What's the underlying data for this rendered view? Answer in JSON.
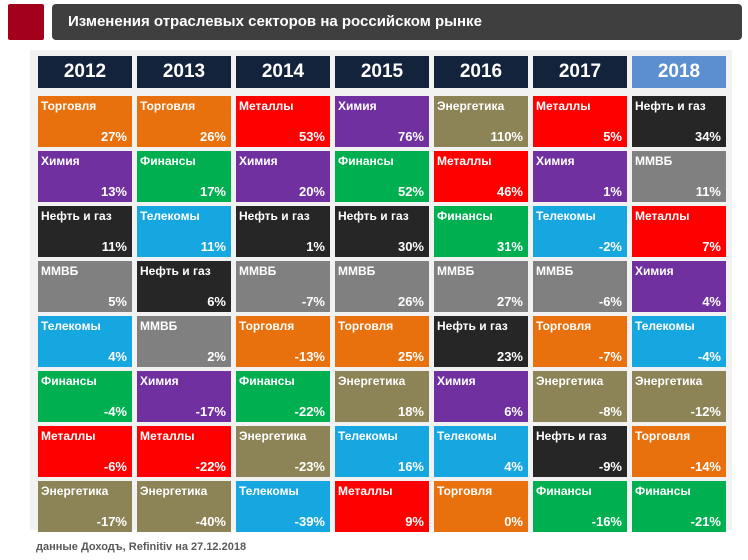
{
  "header": {
    "title": "Изменения  отраслевых секторов на российском рынке"
  },
  "footnote": "данные Доходъ, Refinitiv на 27.12.2018",
  "colors": {
    "header_dark": "#14233c",
    "header_highlight": "#5b8fd0",
    "Торговля": "#e8700d",
    "Химия": "#7030a0",
    "Нефть и газ": "#262626",
    "ММВБ": "#808080",
    "Телекомы": "#17a7e0",
    "Финансы": "#00b050",
    "Металлы": "#ff0000",
    "Энергетика": "#8c8456"
  },
  "chart_data": {
    "type": "table",
    "years": [
      "2012",
      "2013",
      "2014",
      "2015",
      "2016",
      "2017",
      "2018"
    ],
    "highlight_year": "2018",
    "columns": [
      {
        "year": "2012",
        "cells": [
          {
            "sector": "Торговля",
            "value": "27%"
          },
          {
            "sector": "Химия",
            "value": "13%"
          },
          {
            "sector": "Нефть и газ",
            "value": "11%"
          },
          {
            "sector": "ММВБ",
            "value": "5%"
          },
          {
            "sector": "Телекомы",
            "value": "4%"
          },
          {
            "sector": "Финансы",
            "value": "-4%"
          },
          {
            "sector": "Металлы",
            "value": "-6%"
          },
          {
            "sector": "Энергетика",
            "value": "-17%"
          }
        ]
      },
      {
        "year": "2013",
        "cells": [
          {
            "sector": "Торговля",
            "value": "26%"
          },
          {
            "sector": "Финансы",
            "value": "17%"
          },
          {
            "sector": "Телекомы",
            "value": "11%"
          },
          {
            "sector": "Нефть и газ",
            "value": "6%"
          },
          {
            "sector": "ММВБ",
            "value": "2%"
          },
          {
            "sector": "Химия",
            "value": "-17%"
          },
          {
            "sector": "Металлы",
            "value": "-22%"
          },
          {
            "sector": "Энергетика",
            "value": "-40%"
          }
        ]
      },
      {
        "year": "2014",
        "cells": [
          {
            "sector": "Металлы",
            "value": "53%"
          },
          {
            "sector": "Химия",
            "value": "20%"
          },
          {
            "sector": "Нефть и газ",
            "value": "1%"
          },
          {
            "sector": "ММВБ",
            "value": "-7%"
          },
          {
            "sector": "Торговля",
            "value": "-13%"
          },
          {
            "sector": "Финансы",
            "value": "-22%"
          },
          {
            "sector": "Энергетика",
            "value": "-23%"
          },
          {
            "sector": "Телекомы",
            "value": "-39%"
          }
        ]
      },
      {
        "year": "2015",
        "cells": [
          {
            "sector": "Химия",
            "value": "76%"
          },
          {
            "sector": "Финансы",
            "value": "52%"
          },
          {
            "sector": "Нефть и газ",
            "value": "30%"
          },
          {
            "sector": "ММВБ",
            "value": "26%"
          },
          {
            "sector": "Торговля",
            "value": "25%"
          },
          {
            "sector": "Энергетика",
            "value": "18%"
          },
          {
            "sector": "Телекомы",
            "value": "16%"
          },
          {
            "sector": "Металлы",
            "value": "9%"
          }
        ]
      },
      {
        "year": "2016",
        "cells": [
          {
            "sector": "Энергетика",
            "value": "110%"
          },
          {
            "sector": "Металлы",
            "value": "46%"
          },
          {
            "sector": "Финансы",
            "value": "31%"
          },
          {
            "sector": "ММВБ",
            "value": "27%"
          },
          {
            "sector": "Нефть и газ",
            "value": "23%"
          },
          {
            "sector": "Химия",
            "value": "6%"
          },
          {
            "sector": "Телекомы",
            "value": "4%"
          },
          {
            "sector": "Торговля",
            "value": "0%"
          }
        ]
      },
      {
        "year": "2017",
        "cells": [
          {
            "sector": "Металлы",
            "value": "5%"
          },
          {
            "sector": "Химия",
            "value": "1%"
          },
          {
            "sector": "Телекомы",
            "value": "-2%"
          },
          {
            "sector": "ММВБ",
            "value": "-6%"
          },
          {
            "sector": "Торговля",
            "value": "-7%"
          },
          {
            "sector": "Энергетика",
            "value": "-8%"
          },
          {
            "sector": "Нефть и газ",
            "value": "-9%"
          },
          {
            "sector": "Финансы",
            "value": "-16%"
          }
        ]
      },
      {
        "year": "2018",
        "cells": [
          {
            "sector": "Нефть и газ",
            "value": "34%"
          },
          {
            "sector": "ММВБ",
            "value": "11%"
          },
          {
            "sector": "Металлы",
            "value": "7%"
          },
          {
            "sector": "Химия",
            "value": "4%"
          },
          {
            "sector": "Телекомы",
            "value": "-4%"
          },
          {
            "sector": "Энергетика",
            "value": "-12%"
          },
          {
            "sector": "Торговля",
            "value": "-14%"
          },
          {
            "sector": "Финансы",
            "value": "-21%"
          }
        ]
      }
    ]
  }
}
